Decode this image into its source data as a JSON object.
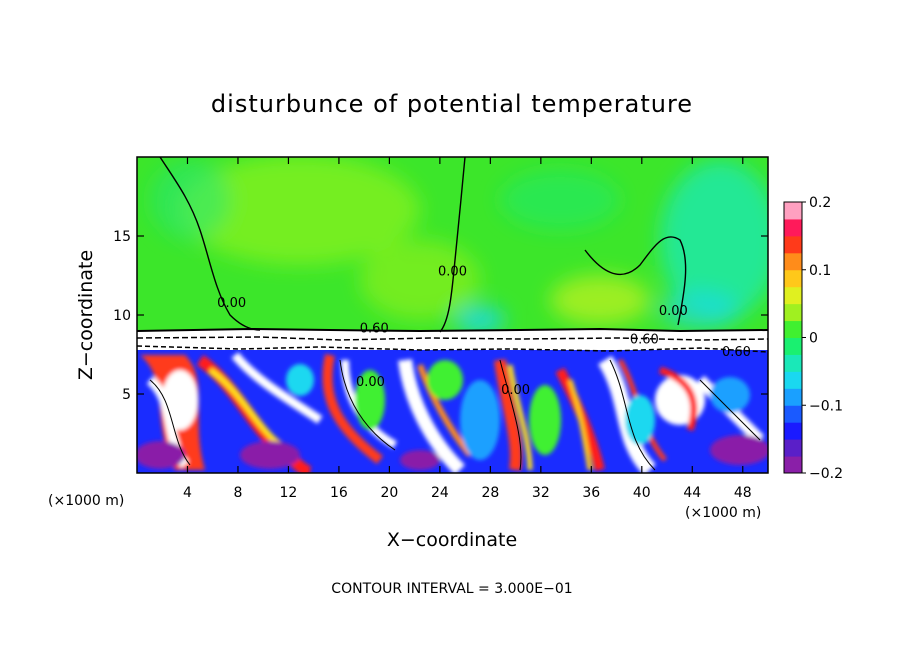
{
  "chart_data": {
    "type": "heatmap",
    "title": "disturbunce of potential temperature",
    "xlabel": "X−coordinate",
    "ylabel": "Z−coordinate",
    "x_unit": "(×1000 m)",
    "x_unit_right": "(×1000 m)",
    "footer": "CONTOUR INTERVAL = 3.000E−01",
    "xlim": [
      0,
      50
    ],
    "ylim": [
      0,
      20
    ],
    "x_ticks": [
      4,
      8,
      12,
      16,
      20,
      24,
      28,
      32,
      36,
      40,
      44,
      48
    ],
    "y_ticks": [
      5,
      10,
      15
    ],
    "x_tick_labels": [
      "4",
      "8",
      "12",
      "16",
      "20",
      "24",
      "28",
      "32",
      "36",
      "40",
      "44",
      "48"
    ],
    "y_tick_labels": [
      "5",
      "10",
      "15"
    ],
    "colorbar": {
      "range": [
        -0.2,
        0.2
      ],
      "ticks": [
        0.2,
        0.1,
        0,
        -0.1,
        -0.2
      ],
      "tick_labels": [
        "0.2",
        "0.1",
        "0",
        "−0.1",
        "−0.2"
      ],
      "colors": [
        "#8a1fa8",
        "#5a1fc8",
        "#1a1aff",
        "#1a5aff",
        "#1aa0ff",
        "#1ad8f0",
        "#1ae8b8",
        "#1af070",
        "#40f030",
        "#a0f020",
        "#e0f020",
        "#ffc81a",
        "#ff8c1a",
        "#ff3a1a",
        "#ff1a5a",
        "#ffa0c0"
      ]
    },
    "contour_labels": [
      {
        "text": "0.60",
        "x": 18.8,
        "z": 8.9
      },
      {
        "text": "0.60",
        "x": 40.2,
        "z": 8.2
      },
      {
        "text": "0.60",
        "x": 47.5,
        "z": 7.4
      },
      {
        "text": "0.00",
        "x": 25.0,
        "z": 12.5
      },
      {
        "text": "0.00",
        "x": 7.5,
        "z": 10.5
      },
      {
        "text": "0.00",
        "x": 42.5,
        "z": 10.0
      },
      {
        "text": "0.00",
        "x": 18.5,
        "z": 5.5
      },
      {
        "text": "0.00",
        "x": 30.0,
        "z": 5.0
      }
    ]
  }
}
